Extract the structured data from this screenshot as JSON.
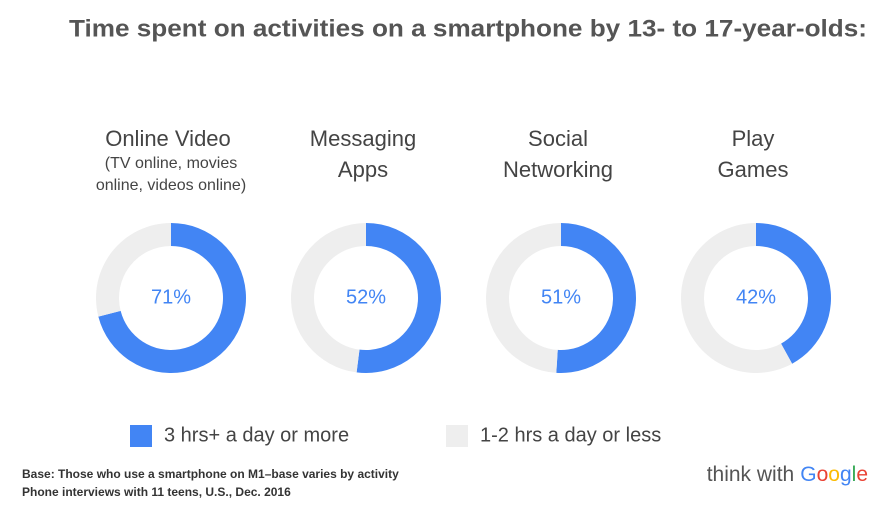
{
  "chart_data": {
    "type": "donut",
    "title": "Time spent on activities on a smartphone by 13- to 17-year-olds:",
    "categories": [
      [
        "Online Video"
      ],
      [
        "Messaging",
        "Apps"
      ],
      [
        "Social",
        "Networking"
      ],
      [
        "Play",
        "Games"
      ]
    ],
    "notes": [
      "(TV online, movies",
      "online, videos online)"
    ],
    "series": [
      {
        "name": "3 hrs+ a day or more",
        "color": "#4285f4",
        "values": [
          71,
          52,
          51,
          42
        ],
        "value_labels": [
          "71%",
          "52%",
          "51%",
          "42%"
        ]
      },
      {
        "name": "1-2 hrs a day or less",
        "color": "#eeeeee",
        "values": [
          29,
          48,
          49,
          58
        ]
      }
    ],
    "legend": "bottom",
    "footnote": [
      "Base: Those who use a smartphone on M1–base varies by activity",
      "Phone interviews with 11 teens, U.S., Dec. 2016"
    ],
    "logo": [
      "think with",
      "Google"
    ]
  }
}
